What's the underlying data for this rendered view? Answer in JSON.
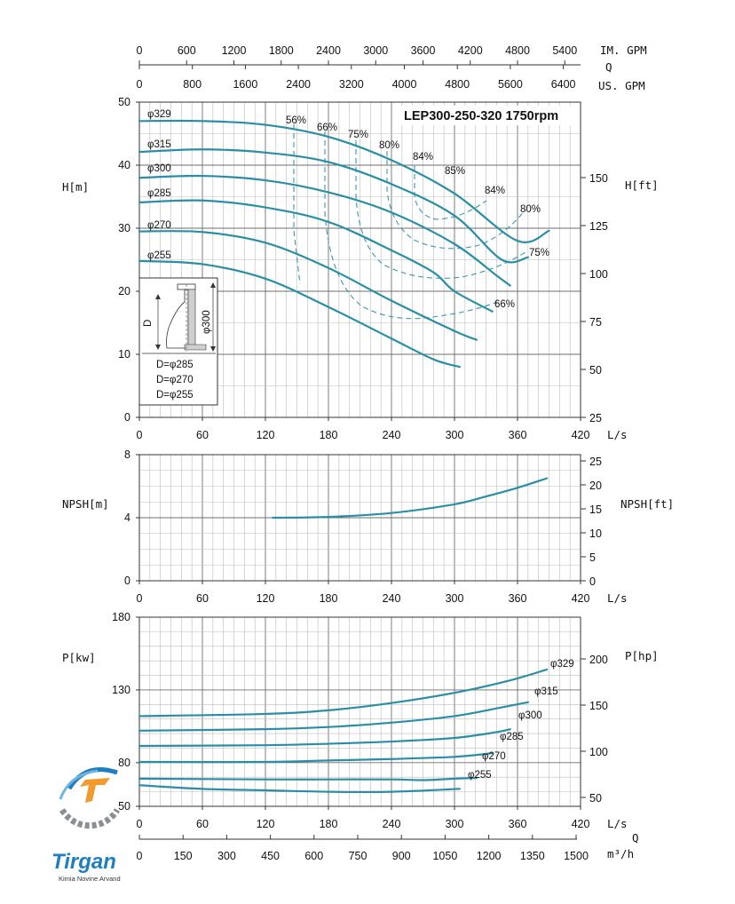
{
  "title": "LEP300-250-320 1750rpm",
  "colors": {
    "curve": "#2a8ea5",
    "dash": "#3b98ad",
    "logo_orange": "#f29a2e",
    "logo_blue": "#1e7fc0",
    "logo_gray": "#8a8f96"
  },
  "logo": {
    "text": "Tirgan",
    "sub": "Kimia Novine Arvand"
  },
  "top_axes": {
    "q_label": "Q",
    "im_gpm": {
      "unit": "IM. GPM",
      "ticks": [
        "0",
        "600",
        "1200",
        "1800",
        "2400",
        "3000",
        "3600",
        "4200",
        "4800",
        "5400"
      ]
    },
    "us_gpm": {
      "unit": "US. GPM",
      "ticks": [
        "0",
        "800",
        "1600",
        "2400",
        "3200",
        "4000",
        "4800",
        "5600",
        "6400"
      ]
    }
  },
  "bottom_axis": {
    "q_label": "Q",
    "unit": "m³/h",
    "ticks": [
      "0",
      "150",
      "300",
      "450",
      "600",
      "750",
      "900",
      "1050",
      "1200",
      "1350",
      "1500"
    ]
  },
  "inset": {
    "d_label": "D",
    "dim_label": "φ300",
    "lines": [
      "D=φ285",
      "D=φ270",
      "D=φ255"
    ]
  },
  "chart_data": [
    {
      "type": "line",
      "name": "head",
      "title": "LEP300-250-320 1750rpm",
      "xlabel": "L/s",
      "ylabel": "H[m]",
      "y2label": "H[ft]",
      "xlim": [
        0,
        420
      ],
      "ylim": [
        0,
        50
      ],
      "xticks": [
        "0",
        "60",
        "120",
        "180",
        "240",
        "300",
        "360",
        "420"
      ],
      "yticks": [
        "0",
        "10",
        "20",
        "30",
        "40",
        "50"
      ],
      "y2ticks": [
        "25",
        "25",
        "50",
        "75",
        "100",
        "125",
        "150"
      ],
      "grid": true,
      "series": [
        {
          "name": "φ329",
          "points": [
            [
              0,
              47.0
            ],
            [
              60,
              47.0
            ],
            [
              120,
              46.4
            ],
            [
              180,
              44.5
            ],
            [
              240,
              40.8
            ],
            [
              300,
              35.5
            ],
            [
              360,
              28.0
            ],
            [
              390,
              29.6
            ]
          ]
        },
        {
          "name": "φ315",
          "points": [
            [
              0,
              42.1
            ],
            [
              60,
              42.5
            ],
            [
              120,
              42.0
            ],
            [
              180,
              40.5
            ],
            [
              240,
              37.0
            ],
            [
              300,
              32.0
            ],
            [
              345,
              25.0
            ],
            [
              370,
              25.4
            ]
          ]
        },
        {
          "name": "φ300",
          "points": [
            [
              0,
              38.0
            ],
            [
              60,
              38.3
            ],
            [
              120,
              37.6
            ],
            [
              180,
              35.7
            ],
            [
              240,
              32.5
            ],
            [
              300,
              27.5
            ],
            [
              340,
              22.5
            ],
            [
              353,
              20.9
            ]
          ]
        },
        {
          "name": "φ285",
          "points": [
            [
              0,
              34.1
            ],
            [
              60,
              34.4
            ],
            [
              120,
              33.3
            ],
            [
              180,
              31.0
            ],
            [
              240,
              26.5
            ],
            [
              280,
              23.0
            ],
            [
              300,
              20.0
            ],
            [
              336,
              16.8
            ]
          ]
        },
        {
          "name": "φ270",
          "points": [
            [
              0,
              29.5
            ],
            [
              60,
              29.4
            ],
            [
              120,
              27.7
            ],
            [
              180,
              23.7
            ],
            [
              240,
              18.5
            ],
            [
              300,
              13.7
            ],
            [
              321,
              12.3
            ]
          ]
        },
        {
          "name": "φ255",
          "points": [
            [
              0,
              24.8
            ],
            [
              60,
              24.3
            ],
            [
              120,
              22.0
            ],
            [
              180,
              17.5
            ],
            [
              240,
              12.5
            ],
            [
              280,
              9.2
            ],
            [
              305,
              8.0
            ]
          ]
        }
      ],
      "efficiency_labels": [
        "56%",
        "66%",
        "75%",
        "80%",
        "84%",
        "85%",
        "84%",
        "80%",
        "75%",
        "66%"
      ],
      "diameter_labels": [
        "φ329",
        "φ315",
        "φ300",
        "φ285",
        "φ270",
        "φ255"
      ]
    },
    {
      "type": "line",
      "name": "npsh",
      "xlabel": "L/s",
      "ylabel": "NPSH[m]",
      "y2label": "NPSH[ft]",
      "xlim": [
        0,
        420
      ],
      "ylim": [
        0,
        8
      ],
      "xticks": [
        "0",
        "60",
        "120",
        "180",
        "240",
        "300",
        "360",
        "420"
      ],
      "yticks": [
        "0",
        "4",
        "8"
      ],
      "y2ticks": [
        "0",
        "5",
        "10",
        "15",
        "20",
        "25"
      ],
      "grid": true,
      "series": [
        {
          "name": "NPSH",
          "points": [
            [
              127,
              4.0
            ],
            [
              180,
              4.05
            ],
            [
              240,
              4.3
            ],
            [
              300,
              4.85
            ],
            [
              330,
              5.35
            ],
            [
              360,
              5.9
            ],
            [
              388,
              6.5
            ]
          ]
        }
      ]
    },
    {
      "type": "line",
      "name": "power",
      "xlabel": "L/s",
      "ylabel": "P[kw]",
      "y2label": "P[hp]",
      "xlim": [
        0,
        420
      ],
      "ylim": [
        50,
        180
      ],
      "xticks": [
        "0",
        "60",
        "120",
        "180",
        "240",
        "300",
        "360",
        "420"
      ],
      "yticks": [
        "50",
        "80",
        "130",
        "180"
      ],
      "y2ticks": [
        "50",
        "100",
        "150",
        "200"
      ],
      "grid": true,
      "series": [
        {
          "name": "φ329",
          "points": [
            [
              0,
              112
            ],
            [
              120,
              113.5
            ],
            [
              180,
              116
            ],
            [
              240,
              121
            ],
            [
              300,
              128
            ],
            [
              350,
              136
            ],
            [
              388,
              144
            ]
          ]
        },
        {
          "name": "φ315",
          "points": [
            [
              0,
              102
            ],
            [
              120,
              103
            ],
            [
              180,
              104.5
            ],
            [
              240,
              107.5
            ],
            [
              300,
              112
            ],
            [
              345,
              118
            ],
            [
              370,
              121.5
            ]
          ]
        },
        {
          "name": "φ300",
          "points": [
            [
              0,
              91.5
            ],
            [
              120,
              92
            ],
            [
              180,
              93
            ],
            [
              240,
              94.5
            ],
            [
              300,
              97
            ],
            [
              340,
              101
            ],
            [
              353,
              103
            ]
          ]
        },
        {
          "name": "φ285",
          "points": [
            [
              0,
              80.5
            ],
            [
              120,
              80.5
            ],
            [
              180,
              81.5
            ],
            [
              240,
              82.5
            ],
            [
              300,
              84
            ],
            [
              336,
              86.5
            ]
          ]
        },
        {
          "name": "φ270",
          "points": [
            [
              0,
              69
            ],
            [
              120,
              68.5
            ],
            [
              180,
              68.5
            ],
            [
              240,
              68.5
            ],
            [
              270,
              68
            ],
            [
              300,
              69
            ],
            [
              321,
              69.5
            ]
          ]
        },
        {
          "name": "φ255",
          "points": [
            [
              0,
              64.5
            ],
            [
              60,
              62
            ],
            [
              120,
              61
            ],
            [
              180,
              60
            ],
            [
              240,
              60
            ],
            [
              305,
              62
            ]
          ]
        }
      ]
    }
  ]
}
